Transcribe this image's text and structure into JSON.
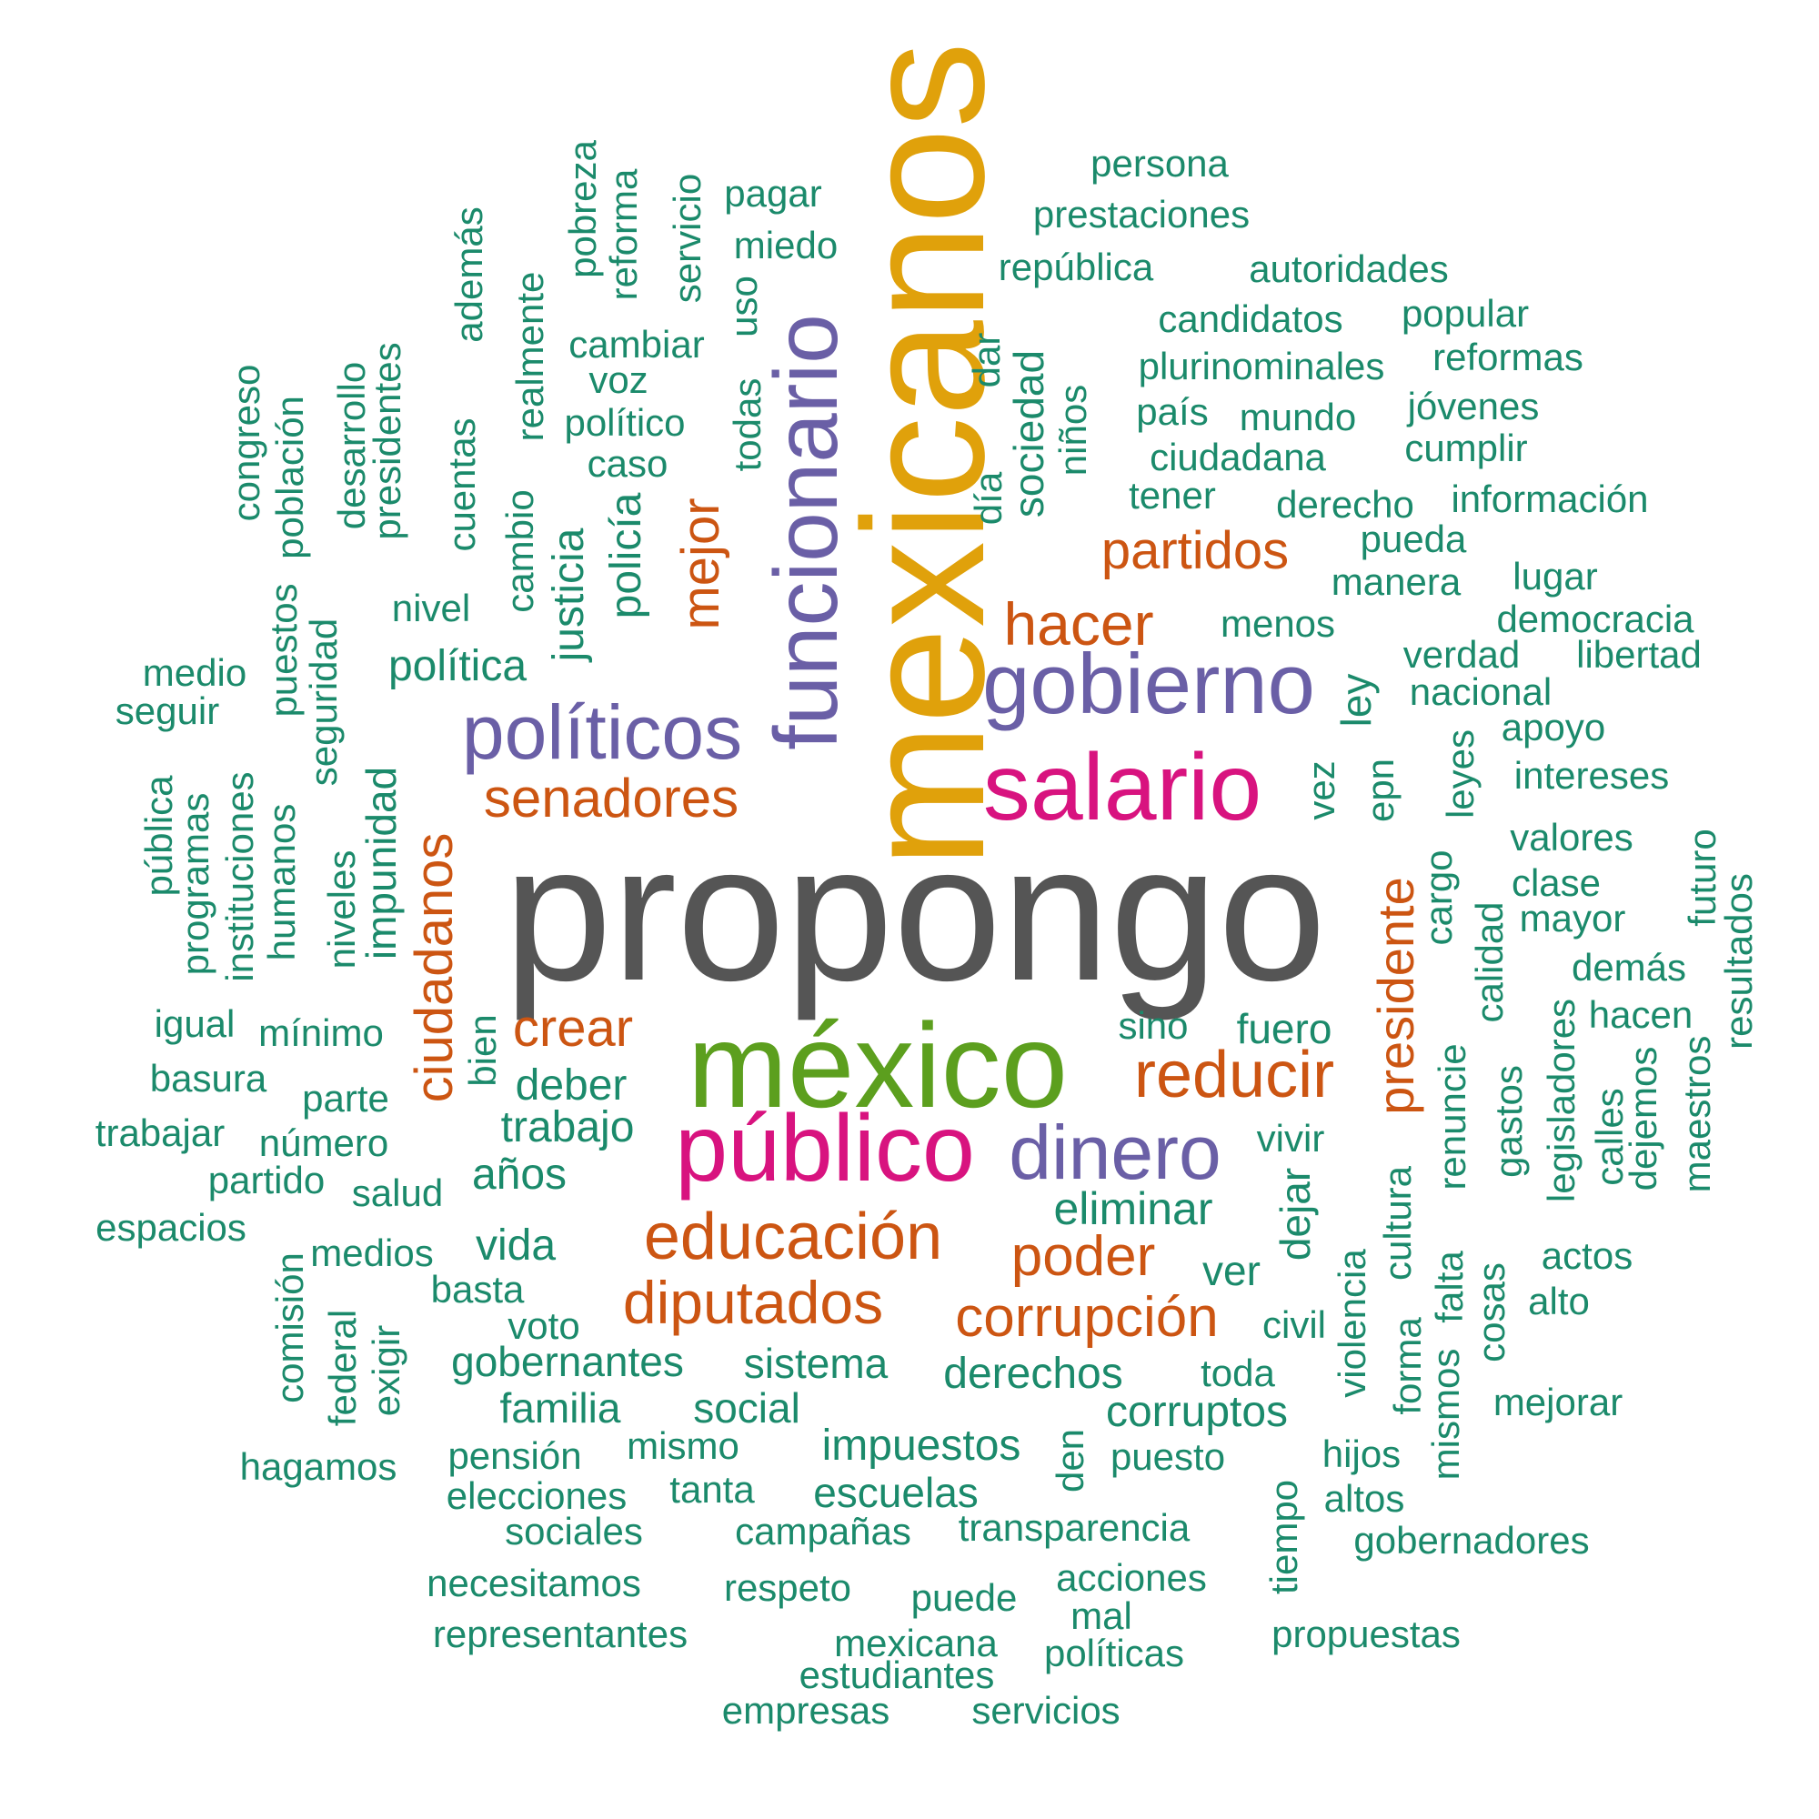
{
  "words": [
    {
      "text": "propongo",
      "weight": 1.0,
      "color": "#555555"
    },
    {
      "text": "mexicanos",
      "weight": 0.92,
      "color": "#e0a10b"
    },
    {
      "text": "méxico",
      "weight": 0.67,
      "color": "#5c9f1e"
    },
    {
      "text": "funcionario",
      "weight": 0.57,
      "color": "#6a5fa6"
    },
    {
      "text": "salario",
      "weight": 0.52,
      "color": "#d8137f"
    },
    {
      "text": "público",
      "weight": 0.52,
      "color": "#d8137f"
    },
    {
      "text": "gobierno",
      "weight": 0.48,
      "color": "#6a5fa6"
    },
    {
      "text": "políticos",
      "weight": 0.46,
      "color": "#6a5fa6"
    },
    {
      "text": "dinero",
      "weight": 0.46,
      "color": "#6a5fa6"
    },
    {
      "text": "educación",
      "weight": 0.4,
      "color": "#cc5512"
    },
    {
      "text": "reducir",
      "weight": 0.38,
      "color": "#cc5512"
    },
    {
      "text": "diputados",
      "weight": 0.37,
      "color": "#cc5512"
    },
    {
      "text": "hacer",
      "weight": 0.37,
      "color": "#cc5512"
    },
    {
      "text": "ciudadanos",
      "weight": 0.36,
      "color": "#cc5512"
    },
    {
      "text": "corrupción",
      "weight": 0.35,
      "color": "#cc5512"
    },
    {
      "text": "poder",
      "weight": 0.35,
      "color": "#cc5512"
    },
    {
      "text": "presidente",
      "weight": 0.34,
      "color": "#cc5512"
    },
    {
      "text": "senadores",
      "weight": 0.34,
      "color": "#cc5512"
    },
    {
      "text": "partidos",
      "weight": 0.33,
      "color": "#cc5512"
    },
    {
      "text": "mejor",
      "weight": 0.32,
      "color": "#cc5512"
    },
    {
      "text": "crear",
      "weight": 0.32,
      "color": "#cc5512"
    },
    {
      "text": "persona",
      "weight": 0.2,
      "color": "#1b8a6b"
    },
    {
      "text": "prestaciones",
      "weight": 0.2,
      "color": "#1b8a6b"
    },
    {
      "text": "república",
      "weight": 0.2,
      "color": "#1b8a6b"
    },
    {
      "text": "autoridades",
      "weight": 0.2,
      "color": "#1b8a6b"
    },
    {
      "text": "candidatos",
      "weight": 0.2,
      "color": "#1b8a6b"
    },
    {
      "text": "popular",
      "weight": 0.2,
      "color": "#1b8a6b"
    },
    {
      "text": "plurinominales",
      "weight": 0.2,
      "color": "#1b8a6b"
    },
    {
      "text": "reformas",
      "weight": 0.2,
      "color": "#1b8a6b"
    },
    {
      "text": "país",
      "weight": 0.2,
      "color": "#1b8a6b"
    },
    {
      "text": "mundo",
      "weight": 0.2,
      "color": "#1b8a6b"
    },
    {
      "text": "jóvenes",
      "weight": 0.2,
      "color": "#1b8a6b"
    },
    {
      "text": "ciudadana",
      "weight": 0.2,
      "color": "#1b8a6b"
    },
    {
      "text": "cumplir",
      "weight": 0.2,
      "color": "#1b8a6b"
    },
    {
      "text": "tener",
      "weight": 0.2,
      "color": "#1b8a6b"
    },
    {
      "text": "derecho",
      "weight": 0.2,
      "color": "#1b8a6b"
    },
    {
      "text": "información",
      "weight": 0.2,
      "color": "#1b8a6b"
    },
    {
      "text": "pueda",
      "weight": 0.2,
      "color": "#1b8a6b"
    },
    {
      "text": "manera",
      "weight": 0.2,
      "color": "#1b8a6b"
    },
    {
      "text": "lugar",
      "weight": 0.2,
      "color": "#1b8a6b"
    },
    {
      "text": "menos",
      "weight": 0.2,
      "color": "#1b8a6b"
    },
    {
      "text": "democracia",
      "weight": 0.2,
      "color": "#1b8a6b"
    },
    {
      "text": "verdad",
      "weight": 0.2,
      "color": "#1b8a6b"
    },
    {
      "text": "libertad",
      "weight": 0.2,
      "color": "#1b8a6b"
    },
    {
      "text": "nacional",
      "weight": 0.2,
      "color": "#1b8a6b"
    },
    {
      "text": "apoyo",
      "weight": 0.2,
      "color": "#1b8a6b"
    },
    {
      "text": "intereses",
      "weight": 0.2,
      "color": "#1b8a6b"
    },
    {
      "text": "valores",
      "weight": 0.2,
      "color": "#1b8a6b"
    },
    {
      "text": "clase",
      "weight": 0.2,
      "color": "#1b8a6b"
    },
    {
      "text": "mayor",
      "weight": 0.2,
      "color": "#1b8a6b"
    },
    {
      "text": "demás",
      "weight": 0.2,
      "color": "#1b8a6b"
    },
    {
      "text": "hacen",
      "weight": 0.2,
      "color": "#1b8a6b"
    },
    {
      "text": "sino",
      "weight": 0.2,
      "color": "#1b8a6b"
    },
    {
      "text": "fuero",
      "weight": 0.2,
      "color": "#1b8a6b"
    },
    {
      "text": "pagar",
      "weight": 0.2,
      "color": "#1b8a6b"
    },
    {
      "text": "miedo",
      "weight": 0.2,
      "color": "#1b8a6b"
    },
    {
      "text": "cambiar",
      "weight": 0.2,
      "color": "#1b8a6b"
    },
    {
      "text": "voz",
      "weight": 0.2,
      "color": "#1b8a6b"
    },
    {
      "text": "político",
      "weight": 0.2,
      "color": "#1b8a6b"
    },
    {
      "text": "caso",
      "weight": 0.2,
      "color": "#1b8a6b"
    },
    {
      "text": "nivel",
      "weight": 0.2,
      "color": "#1b8a6b"
    },
    {
      "text": "política",
      "weight": 0.2,
      "color": "#1b8a6b"
    },
    {
      "text": "medio",
      "weight": 0.2,
      "color": "#1b8a6b"
    },
    {
      "text": "seguir",
      "weight": 0.2,
      "color": "#1b8a6b"
    },
    {
      "text": "igual",
      "weight": 0.2,
      "color": "#1b8a6b"
    },
    {
      "text": "mínimo",
      "weight": 0.2,
      "color": "#1b8a6b"
    },
    {
      "text": "basura",
      "weight": 0.2,
      "color": "#1b8a6b"
    },
    {
      "text": "parte",
      "weight": 0.2,
      "color": "#1b8a6b"
    },
    {
      "text": "deber",
      "weight": 0.2,
      "color": "#1b8a6b"
    },
    {
      "text": "trabajar",
      "weight": 0.2,
      "color": "#1b8a6b"
    },
    {
      "text": "número",
      "weight": 0.2,
      "color": "#1b8a6b"
    },
    {
      "text": "trabajo",
      "weight": 0.2,
      "color": "#1b8a6b"
    },
    {
      "text": "partido",
      "weight": 0.2,
      "color": "#1b8a6b"
    },
    {
      "text": "salud",
      "weight": 0.2,
      "color": "#1b8a6b"
    },
    {
      "text": "años",
      "weight": 0.2,
      "color": "#1b8a6b"
    },
    {
      "text": "espacios",
      "weight": 0.2,
      "color": "#1b8a6b"
    },
    {
      "text": "medios",
      "weight": 0.2,
      "color": "#1b8a6b"
    },
    {
      "text": "vida",
      "weight": 0.2,
      "color": "#1b8a6b"
    },
    {
      "text": "basta",
      "weight": 0.2,
      "color": "#1b8a6b"
    },
    {
      "text": "voto",
      "weight": 0.2,
      "color": "#1b8a6b"
    },
    {
      "text": "gobernantes",
      "weight": 0.2,
      "color": "#1b8a6b"
    },
    {
      "text": "sistema",
      "weight": 0.2,
      "color": "#1b8a6b"
    },
    {
      "text": "familia",
      "weight": 0.2,
      "color": "#1b8a6b"
    },
    {
      "text": "social",
      "weight": 0.2,
      "color": "#1b8a6b"
    },
    {
      "text": "hagamos",
      "weight": 0.2,
      "color": "#1b8a6b"
    },
    {
      "text": "pensión",
      "weight": 0.2,
      "color": "#1b8a6b"
    },
    {
      "text": "mismo",
      "weight": 0.2,
      "color": "#1b8a6b"
    },
    {
      "text": "elecciones",
      "weight": 0.2,
      "color": "#1b8a6b"
    },
    {
      "text": "tanta",
      "weight": 0.2,
      "color": "#1b8a6b"
    },
    {
      "text": "sociales",
      "weight": 0.2,
      "color": "#1b8a6b"
    },
    {
      "text": "campañas",
      "weight": 0.2,
      "color": "#1b8a6b"
    },
    {
      "text": "necesitamos",
      "weight": 0.2,
      "color": "#1b8a6b"
    },
    {
      "text": "respeto",
      "weight": 0.2,
      "color": "#1b8a6b"
    },
    {
      "text": "representantes",
      "weight": 0.2,
      "color": "#1b8a6b"
    },
    {
      "text": "mexicana",
      "weight": 0.2,
      "color": "#1b8a6b"
    },
    {
      "text": "estudiantes",
      "weight": 0.2,
      "color": "#1b8a6b"
    },
    {
      "text": "empresas",
      "weight": 0.2,
      "color": "#1b8a6b"
    },
    {
      "text": "servicios",
      "weight": 0.2,
      "color": "#1b8a6b"
    },
    {
      "text": "impuestos",
      "weight": 0.2,
      "color": "#1b8a6b"
    },
    {
      "text": "escuelas",
      "weight": 0.2,
      "color": "#1b8a6b"
    },
    {
      "text": "transparencia",
      "weight": 0.2,
      "color": "#1b8a6b"
    },
    {
      "text": "puede",
      "weight": 0.2,
      "color": "#1b8a6b"
    },
    {
      "text": "acciones",
      "weight": 0.2,
      "color": "#1b8a6b"
    },
    {
      "text": "mal",
      "weight": 0.2,
      "color": "#1b8a6b"
    },
    {
      "text": "políticas",
      "weight": 0.2,
      "color": "#1b8a6b"
    },
    {
      "text": "eliminar",
      "weight": 0.2,
      "color": "#1b8a6b"
    },
    {
      "text": "ver",
      "weight": 0.2,
      "color": "#1b8a6b"
    },
    {
      "text": "derechos",
      "weight": 0.2,
      "color": "#1b8a6b"
    },
    {
      "text": "toda",
      "weight": 0.2,
      "color": "#1b8a6b"
    },
    {
      "text": "civil",
      "weight": 0.2,
      "color": "#1b8a6b"
    },
    {
      "text": "corruptos",
      "weight": 0.2,
      "color": "#1b8a6b"
    },
    {
      "text": "puesto",
      "weight": 0.2,
      "color": "#1b8a6b"
    },
    {
      "text": "hijos",
      "weight": 0.2,
      "color": "#1b8a6b"
    },
    {
      "text": "altos",
      "weight": 0.2,
      "color": "#1b8a6b"
    },
    {
      "text": "gobernadores",
      "weight": 0.2,
      "color": "#1b8a6b"
    },
    {
      "text": "propuestas",
      "weight": 0.2,
      "color": "#1b8a6b"
    },
    {
      "text": "mejorar",
      "weight": 0.2,
      "color": "#1b8a6b"
    },
    {
      "text": "actos",
      "weight": 0.2,
      "color": "#1b8a6b"
    },
    {
      "text": "alto",
      "weight": 0.2,
      "color": "#1b8a6b"
    },
    {
      "text": "vivir",
      "weight": 0.2,
      "color": "#1b8a6b"
    },
    {
      "text": "pobreza",
      "weight": 0.2,
      "color": "#1b8a6b"
    },
    {
      "text": "reforma",
      "weight": 0.2,
      "color": "#1b8a6b"
    },
    {
      "text": "servicio",
      "weight": 0.2,
      "color": "#1b8a6b"
    },
    {
      "text": "uso",
      "weight": 0.2,
      "color": "#1b8a6b"
    },
    {
      "text": "además",
      "weight": 0.2,
      "color": "#1b8a6b"
    },
    {
      "text": "realmente",
      "weight": 0.2,
      "color": "#1b8a6b"
    },
    {
      "text": "congreso",
      "weight": 0.2,
      "color": "#1b8a6b"
    },
    {
      "text": "población",
      "weight": 0.2,
      "color": "#1b8a6b"
    },
    {
      "text": "desarrollo",
      "weight": 0.2,
      "color": "#1b8a6b"
    },
    {
      "text": "presidentes",
      "weight": 0.2,
      "color": "#1b8a6b"
    },
    {
      "text": "cuentas",
      "weight": 0.2,
      "color": "#1b8a6b"
    },
    {
      "text": "cambio",
      "weight": 0.2,
      "color": "#1b8a6b"
    },
    {
      "text": "justicia",
      "weight": 0.2,
      "color": "#1b8a6b"
    },
    {
      "text": "policía",
      "weight": 0.2,
      "color": "#1b8a6b"
    },
    {
      "text": "todas",
      "weight": 0.2,
      "color": "#1b8a6b"
    },
    {
      "text": "dar",
      "weight": 0.2,
      "color": "#1b8a6b"
    },
    {
      "text": "día",
      "weight": 0.2,
      "color": "#1b8a6b"
    },
    {
      "text": "sociedad",
      "weight": 0.2,
      "color": "#1b8a6b"
    },
    {
      "text": "niños",
      "weight": 0.2,
      "color": "#1b8a6b"
    },
    {
      "text": "puestos",
      "weight": 0.2,
      "color": "#1b8a6b"
    },
    {
      "text": "seguridad",
      "weight": 0.2,
      "color": "#1b8a6b"
    },
    {
      "text": "pública",
      "weight": 0.2,
      "color": "#1b8a6b"
    },
    {
      "text": "programas",
      "weight": 0.2,
      "color": "#1b8a6b"
    },
    {
      "text": "instituciones",
      "weight": 0.2,
      "color": "#1b8a6b"
    },
    {
      "text": "humanos",
      "weight": 0.2,
      "color": "#1b8a6b"
    },
    {
      "text": "niveles",
      "weight": 0.2,
      "color": "#1b8a6b"
    },
    {
      "text": "impunidad",
      "weight": 0.2,
      "color": "#1b8a6b"
    },
    {
      "text": "bien",
      "weight": 0.2,
      "color": "#1b8a6b"
    },
    {
      "text": "comisión",
      "weight": 0.2,
      "color": "#1b8a6b"
    },
    {
      "text": "federal",
      "weight": 0.2,
      "color": "#1b8a6b"
    },
    {
      "text": "exigir",
      "weight": 0.2,
      "color": "#1b8a6b"
    },
    {
      "text": "ley",
      "weight": 0.2,
      "color": "#1b8a6b"
    },
    {
      "text": "vez",
      "weight": 0.2,
      "color": "#1b8a6b"
    },
    {
      "text": "epn",
      "weight": 0.2,
      "color": "#1b8a6b"
    },
    {
      "text": "leyes",
      "weight": 0.2,
      "color": "#1b8a6b"
    },
    {
      "text": "cargo",
      "weight": 0.2,
      "color": "#1b8a6b"
    },
    {
      "text": "calidad",
      "weight": 0.2,
      "color": "#1b8a6b"
    },
    {
      "text": "futuro",
      "weight": 0.2,
      "color": "#1b8a6b"
    },
    {
      "text": "resultados",
      "weight": 0.2,
      "color": "#1b8a6b"
    },
    {
      "text": "legisladores",
      "weight": 0.2,
      "color": "#1b8a6b"
    },
    {
      "text": "gastos",
      "weight": 0.2,
      "color": "#1b8a6b"
    },
    {
      "text": "calles",
      "weight": 0.2,
      "color": "#1b8a6b"
    },
    {
      "text": "dejemos",
      "weight": 0.2,
      "color": "#1b8a6b"
    },
    {
      "text": "maestros",
      "weight": 0.2,
      "color": "#1b8a6b"
    },
    {
      "text": "renuncie",
      "weight": 0.2,
      "color": "#1b8a6b"
    },
    {
      "text": "cultura",
      "weight": 0.2,
      "color": "#1b8a6b"
    },
    {
      "text": "falta",
      "weight": 0.2,
      "color": "#1b8a6b"
    },
    {
      "text": "forma",
      "weight": 0.2,
      "color": "#1b8a6b"
    },
    {
      "text": "mismos",
      "weight": 0.2,
      "color": "#1b8a6b"
    },
    {
      "text": "cosas",
      "weight": 0.2,
      "color": "#1b8a6b"
    },
    {
      "text": "dejar",
      "weight": 0.2,
      "color": "#1b8a6b"
    },
    {
      "text": "violencia",
      "weight": 0.2,
      "color": "#1b8a6b"
    },
    {
      "text": "tiempo",
      "weight": 0.2,
      "color": "#1b8a6b"
    },
    {
      "text": "den",
      "weight": 0.2,
      "color": "#1b8a6b"
    }
  ]
}
